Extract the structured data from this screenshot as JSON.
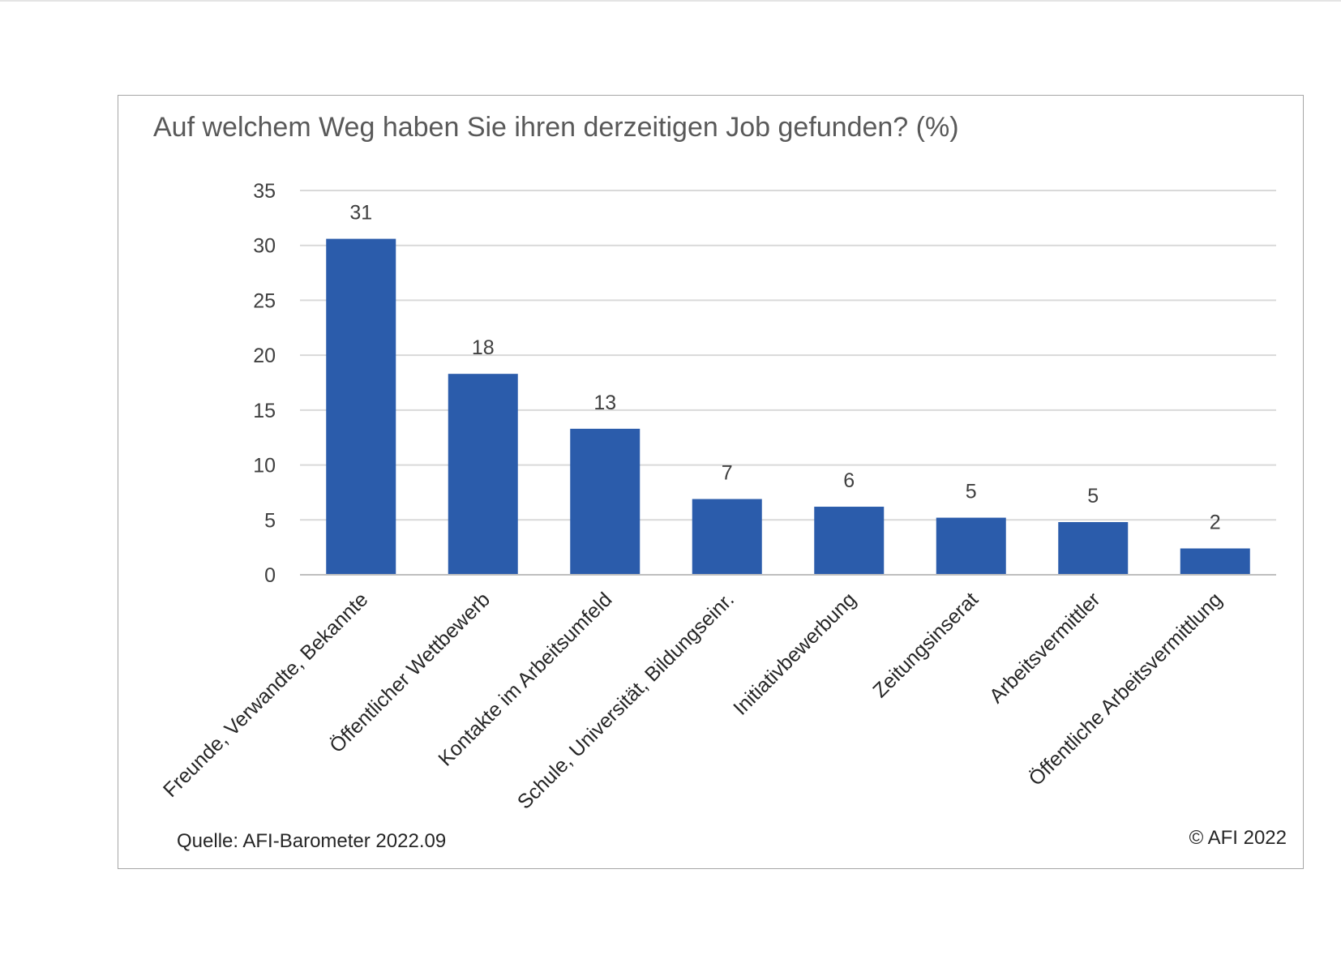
{
  "chart_data": {
    "type": "bar",
    "title": "Auf welchem Weg haben Sie ihren derzeitigen Job gefunden? (%)",
    "categories": [
      "Freunde, Verwandte, Bekannte",
      "Öffentlicher Wettbewerb",
      "Kontakte im Arbeitsumfeld",
      "Schule, Universität, Bildungseinr.",
      "Initiativbewerbung",
      "Zeitungsinserat",
      "Arbeitsvermittler",
      "Öffentliche Arbeitsvermittlung"
    ],
    "values": [
      30.6,
      18.3,
      13.3,
      6.9,
      6.2,
      5.2,
      4.8,
      2.4
    ],
    "data_labels": [
      "31",
      "18",
      "13",
      "7",
      "6",
      "5",
      "5",
      "2"
    ],
    "yticks": [
      "0",
      "5",
      "10",
      "15",
      "20",
      "25",
      "30",
      "35"
    ],
    "ylim": [
      0,
      35
    ],
    "xlabel": "",
    "ylabel": "",
    "grid": true,
    "bar_color": "#2b5cab",
    "gridline_color": "#d9d9d9",
    "source": "Quelle: AFI-Barometer 2022.09",
    "copyright": "© AFI 2022"
  }
}
